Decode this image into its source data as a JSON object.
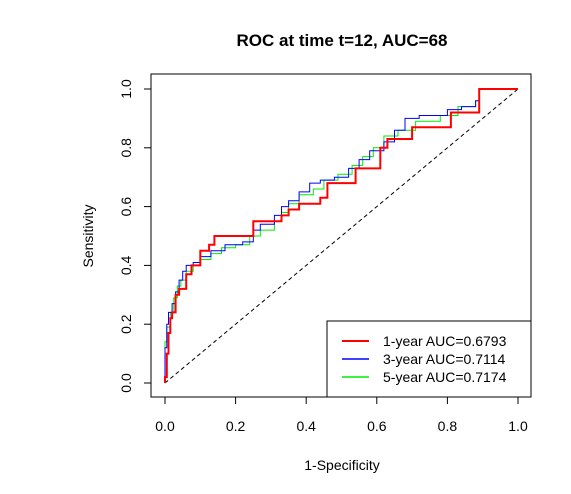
{
  "chart_data": {
    "type": "line",
    "title": "ROC at time t=12, AUC=68",
    "xlabel": "1-Specificity",
    "ylabel": "Sensitivity",
    "xlim": [
      0,
      1
    ],
    "ylim": [
      0,
      1
    ],
    "x_ticks": [
      "0.0",
      "0.2",
      "0.4",
      "0.6",
      "0.8",
      "1.0"
    ],
    "y_ticks": [
      "0.0",
      "0.2",
      "0.4",
      "0.6",
      "0.8",
      "1.0"
    ],
    "grid": false,
    "legend_position": "bottom-right",
    "reference_line": {
      "style": "dashed",
      "color": "#000000",
      "from": [
        0,
        0
      ],
      "to": [
        1,
        1
      ]
    },
    "series": [
      {
        "name": "1-year AUC=0.6793",
        "color": "#ff0000",
        "points": [
          [
            0,
            0
          ],
          [
            0,
            0.02
          ],
          [
            0.005,
            0.02
          ],
          [
            0.005,
            0.1
          ],
          [
            0.01,
            0.1
          ],
          [
            0.01,
            0.17
          ],
          [
            0.015,
            0.17
          ],
          [
            0.015,
            0.22
          ],
          [
            0.02,
            0.22
          ],
          [
            0.02,
            0.24
          ],
          [
            0.03,
            0.24
          ],
          [
            0.03,
            0.3
          ],
          [
            0.04,
            0.3
          ],
          [
            0.04,
            0.32
          ],
          [
            0.06,
            0.32
          ],
          [
            0.06,
            0.37
          ],
          [
            0.075,
            0.37
          ],
          [
            0.075,
            0.4
          ],
          [
            0.1,
            0.4
          ],
          [
            0.1,
            0.45
          ],
          [
            0.125,
            0.45
          ],
          [
            0.125,
            0.47
          ],
          [
            0.14,
            0.47
          ],
          [
            0.14,
            0.5
          ],
          [
            0.25,
            0.5
          ],
          [
            0.25,
            0.55
          ],
          [
            0.33,
            0.55
          ],
          [
            0.33,
            0.57
          ],
          [
            0.35,
            0.57
          ],
          [
            0.35,
            0.59
          ],
          [
            0.38,
            0.59
          ],
          [
            0.38,
            0.61
          ],
          [
            0.44,
            0.61
          ],
          [
            0.44,
            0.63
          ],
          [
            0.46,
            0.63
          ],
          [
            0.46,
            0.68
          ],
          [
            0.54,
            0.68
          ],
          [
            0.54,
            0.73
          ],
          [
            0.61,
            0.73
          ],
          [
            0.61,
            0.8
          ],
          [
            0.63,
            0.8
          ],
          [
            0.63,
            0.83
          ],
          [
            0.7,
            0.83
          ],
          [
            0.7,
            0.87
          ],
          [
            0.81,
            0.87
          ],
          [
            0.81,
            0.92
          ],
          [
            0.89,
            0.92
          ],
          [
            0.89,
            1
          ],
          [
            1,
            1
          ]
        ]
      },
      {
        "name": "3-year AUC=0.7114",
        "color": "#0000ff",
        "points": [
          [
            0,
            0
          ],
          [
            0,
            0.12
          ],
          [
            0.005,
            0.12
          ],
          [
            0.005,
            0.2
          ],
          [
            0.01,
            0.2
          ],
          [
            0.01,
            0.24
          ],
          [
            0.02,
            0.24
          ],
          [
            0.02,
            0.27
          ],
          [
            0.03,
            0.27
          ],
          [
            0.03,
            0.31
          ],
          [
            0.04,
            0.31
          ],
          [
            0.04,
            0.35
          ],
          [
            0.05,
            0.35
          ],
          [
            0.05,
            0.38
          ],
          [
            0.06,
            0.38
          ],
          [
            0.06,
            0.4
          ],
          [
            0.08,
            0.4
          ],
          [
            0.08,
            0.41
          ],
          [
            0.1,
            0.41
          ],
          [
            0.1,
            0.43
          ],
          [
            0.13,
            0.43
          ],
          [
            0.13,
            0.45
          ],
          [
            0.17,
            0.45
          ],
          [
            0.17,
            0.47
          ],
          [
            0.22,
            0.47
          ],
          [
            0.22,
            0.48
          ],
          [
            0.25,
            0.48
          ],
          [
            0.25,
            0.52
          ],
          [
            0.27,
            0.52
          ],
          [
            0.27,
            0.54
          ],
          [
            0.31,
            0.54
          ],
          [
            0.31,
            0.57
          ],
          [
            0.33,
            0.57
          ],
          [
            0.33,
            0.6
          ],
          [
            0.35,
            0.6
          ],
          [
            0.35,
            0.62
          ],
          [
            0.38,
            0.62
          ],
          [
            0.38,
            0.65
          ],
          [
            0.41,
            0.65
          ],
          [
            0.41,
            0.68
          ],
          [
            0.44,
            0.68
          ],
          [
            0.44,
            0.69
          ],
          [
            0.48,
            0.69
          ],
          [
            0.48,
            0.7
          ],
          [
            0.52,
            0.7
          ],
          [
            0.52,
            0.73
          ],
          [
            0.55,
            0.73
          ],
          [
            0.55,
            0.76
          ],
          [
            0.58,
            0.76
          ],
          [
            0.58,
            0.79
          ],
          [
            0.62,
            0.79
          ],
          [
            0.62,
            0.82
          ],
          [
            0.65,
            0.82
          ],
          [
            0.65,
            0.86
          ],
          [
            0.68,
            0.86
          ],
          [
            0.68,
            0.9
          ],
          [
            0.72,
            0.9
          ],
          [
            0.72,
            0.91
          ],
          [
            0.8,
            0.91
          ],
          [
            0.8,
            0.93
          ],
          [
            0.84,
            0.93
          ],
          [
            0.84,
            0.94
          ],
          [
            0.88,
            0.94
          ],
          [
            0.88,
            0.96
          ],
          [
            0.89,
            0.96
          ],
          [
            0.89,
            1
          ],
          [
            1,
            1
          ]
        ]
      },
      {
        "name": "5-year AUC=0.7174",
        "color": "#00ee00",
        "points": [
          [
            0,
            0
          ],
          [
            0,
            0.14
          ],
          [
            0.005,
            0.14
          ],
          [
            0.005,
            0.19
          ],
          [
            0.015,
            0.19
          ],
          [
            0.015,
            0.24
          ],
          [
            0.025,
            0.24
          ],
          [
            0.025,
            0.29
          ],
          [
            0.035,
            0.29
          ],
          [
            0.035,
            0.33
          ],
          [
            0.045,
            0.33
          ],
          [
            0.045,
            0.35
          ],
          [
            0.06,
            0.35
          ],
          [
            0.06,
            0.38
          ],
          [
            0.08,
            0.38
          ],
          [
            0.08,
            0.4
          ],
          [
            0.1,
            0.4
          ],
          [
            0.1,
            0.42
          ],
          [
            0.13,
            0.42
          ],
          [
            0.13,
            0.44
          ],
          [
            0.16,
            0.44
          ],
          [
            0.16,
            0.46
          ],
          [
            0.2,
            0.46
          ],
          [
            0.2,
            0.47
          ],
          [
            0.24,
            0.47
          ],
          [
            0.24,
            0.5
          ],
          [
            0.27,
            0.5
          ],
          [
            0.27,
            0.52
          ],
          [
            0.31,
            0.52
          ],
          [
            0.31,
            0.55
          ],
          [
            0.33,
            0.55
          ],
          [
            0.33,
            0.58
          ],
          [
            0.35,
            0.58
          ],
          [
            0.35,
            0.61
          ],
          [
            0.38,
            0.61
          ],
          [
            0.38,
            0.64
          ],
          [
            0.42,
            0.64
          ],
          [
            0.42,
            0.66
          ],
          [
            0.45,
            0.66
          ],
          [
            0.45,
            0.69
          ],
          [
            0.49,
            0.69
          ],
          [
            0.49,
            0.71
          ],
          [
            0.53,
            0.71
          ],
          [
            0.53,
            0.74
          ],
          [
            0.56,
            0.74
          ],
          [
            0.56,
            0.77
          ],
          [
            0.59,
            0.77
          ],
          [
            0.59,
            0.8
          ],
          [
            0.62,
            0.8
          ],
          [
            0.62,
            0.84
          ],
          [
            0.66,
            0.84
          ],
          [
            0.66,
            0.86
          ],
          [
            0.71,
            0.86
          ],
          [
            0.71,
            0.89
          ],
          [
            0.78,
            0.89
          ],
          [
            0.78,
            0.91
          ],
          [
            0.83,
            0.91
          ],
          [
            0.83,
            0.94
          ],
          [
            0.88,
            0.94
          ],
          [
            0.88,
            0.96
          ],
          [
            0.89,
            0.96
          ],
          [
            0.89,
            1
          ],
          [
            1,
            1
          ]
        ]
      }
    ]
  }
}
